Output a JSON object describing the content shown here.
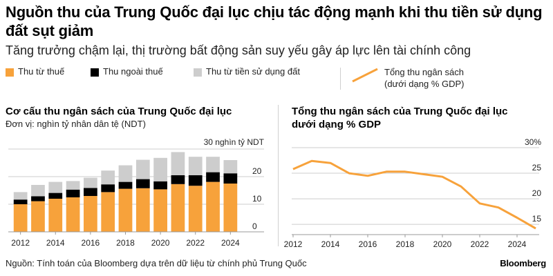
{
  "header": {
    "title": "Nguồn thu của Trung Quốc đại lục chịu tác động mạnh khi thu tiền sử dụng đất sụt giảm",
    "subtitle": "Tăng trưởng chậm lại, thị trường bất động sản suy yếu gây áp lực lên tài chính công"
  },
  "legend": {
    "tax": "Thu từ thuế",
    "nontax": "Thu ngoài thuế",
    "land": "Thu từ tiền sử dụng đất",
    "line_line1": "Tổng thu ngân sách",
    "line_line2": "(dưới dạng % GDP)"
  },
  "colors": {
    "tax": "#f7a23b",
    "nontax": "#000000",
    "land": "#cdcdcd",
    "line": "#f7a23b",
    "grid": "#cccccc",
    "divider": "#d0d0d0"
  },
  "left_panel": {
    "title": "Cơ cấu thu ngân sách của Trung Quốc đại lục",
    "unit": "Đơn vị: nghìn tỷ nhân dân tệ (NDT)"
  },
  "right_panel": {
    "title_line1": "Tổng thu ngân sách của Trung Quốc đại lục",
    "title_line2": "dưới dạng % GDP"
  },
  "footer": {
    "source": "Nguồn: Tính toán của Bloomberg dựa trên dữ liệu từ chính phủ Trung Quốc",
    "brand": "Bloomberg"
  },
  "chart_data": [
    {
      "type": "bar",
      "stacked": true,
      "categories": [
        "2012",
        "2013",
        "2014",
        "2015",
        "2016",
        "2017",
        "2018",
        "2019",
        "2020",
        "2021",
        "2022",
        "2023",
        "2024"
      ],
      "series": [
        {
          "name": "Thu từ thuế",
          "values": [
            10.0,
            11.1,
            12.0,
            12.5,
            13.0,
            14.4,
            15.6,
            15.8,
            15.4,
            17.3,
            16.7,
            18.1,
            17.5
          ]
        },
        {
          "name": "Thu ngoài thuế",
          "values": [
            1.7,
            1.8,
            2.1,
            2.8,
            2.9,
            2.8,
            2.5,
            3.3,
            2.9,
            3.2,
            3.8,
            3.5,
            3.7
          ]
        },
        {
          "name": "Thu từ tiền sử dụng đất",
          "values": [
            2.7,
            4.1,
            4.0,
            3.1,
            3.7,
            5.0,
            6.0,
            7.0,
            8.5,
            8.4,
            6.7,
            5.6,
            4.8
          ]
        }
      ],
      "yticks": [
        0,
        10,
        20,
        30
      ],
      "ylim": [
        0,
        30
      ],
      "y_top_label": "30 nghìn tỷ NDT",
      "xticks": [
        "2012",
        "2014",
        "2016",
        "2018",
        "2020",
        "2022",
        "2024"
      ],
      "grid": true
    },
    {
      "type": "line",
      "x": [
        2012,
        2013,
        2014,
        2015,
        2016,
        2017,
        2018,
        2019,
        2020,
        2021,
        2022,
        2023,
        2024,
        2025
      ],
      "series": [
        {
          "name": "Tổng thu ngân sách (dưới dạng % GDP)",
          "values": [
            25.8,
            27.4,
            27.0,
            25.0,
            24.5,
            25.3,
            25.3,
            24.8,
            24.3,
            22.4,
            19.1,
            18.3,
            16.3,
            14.2
          ]
        }
      ],
      "ylim": [
        13,
        30
      ],
      "yticks": [
        15,
        20,
        25,
        30
      ],
      "ytick_labels": [
        "15",
        "20",
        "25",
        "30%"
      ],
      "xticks": [
        "2012",
        "2014",
        "2016",
        "2018",
        "2020",
        "2022",
        "2024"
      ],
      "grid": true
    }
  ]
}
